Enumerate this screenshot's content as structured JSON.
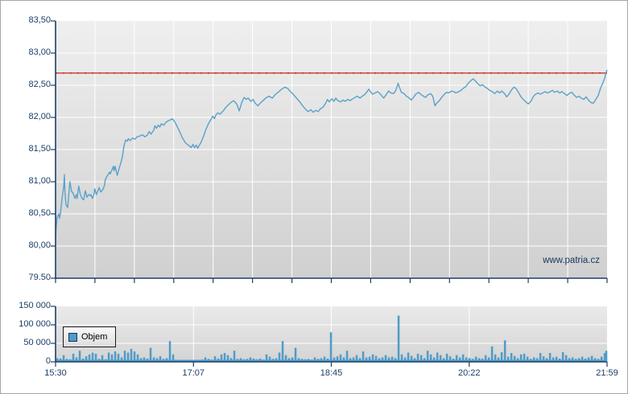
{
  "watermark": "www.patria.cz",
  "colors": {
    "price_line": "#5aa1c9",
    "volume_bar": "#4f9cc8",
    "reference_line": "#d94f43",
    "reference_line_dash": "#a93a30",
    "axis": "#1c3f66",
    "label_text": "#1c3f66",
    "gridline": "#ffffff",
    "plot_bg_top": "#efefef",
    "plot_bg_bottom": "#d0d0d0"
  },
  "price_chart": {
    "y_tick_labels": [
      "83,50",
      "83,00",
      "82,50",
      "82,00",
      "81,50",
      "81,00",
      "80,50",
      "80,00",
      "79.50"
    ],
    "y_min": 79.5,
    "y_max": 83.5,
    "reference_value": 82.69,
    "x_minor_divisions": 14
  },
  "volume_chart": {
    "legend_label": "Objem",
    "y_tick_labels": [
      "150 000",
      "100 000",
      "50 000",
      "0"
    ],
    "y_min": 0,
    "y_max": 150000,
    "x_tick_labels": [
      "15:30",
      "17:07",
      "18:45",
      "20:22",
      "21:59"
    ]
  },
  "chart_data": [
    {
      "type": "line",
      "name": "price",
      "x_axis": {
        "start": "15:30",
        "end": "21:59",
        "x_is_fraction_of_width": true
      },
      "ylim": [
        79.5,
        83.5
      ],
      "reference_line": 82.69,
      "points": [
        [
          0.0,
          80.1
        ],
        [
          0.001,
          80.28
        ],
        [
          0.003,
          80.45
        ],
        [
          0.006,
          80.5
        ],
        [
          0.007,
          80.43
        ],
        [
          0.009,
          80.52
        ],
        [
          0.01,
          80.6
        ],
        [
          0.012,
          80.74
        ],
        [
          0.015,
          80.95
        ],
        [
          0.016,
          81.11
        ],
        [
          0.017,
          80.85
        ],
        [
          0.019,
          80.64
        ],
        [
          0.022,
          80.6
        ],
        [
          0.025,
          80.9
        ],
        [
          0.026,
          81.0
        ],
        [
          0.029,
          80.85
        ],
        [
          0.032,
          80.82
        ],
        [
          0.035,
          80.74
        ],
        [
          0.038,
          80.8
        ],
        [
          0.039,
          80.74
        ],
        [
          0.042,
          80.93
        ],
        [
          0.045,
          80.8
        ],
        [
          0.048,
          80.74
        ],
        [
          0.051,
          80.72
        ],
        [
          0.054,
          80.86
        ],
        [
          0.057,
          80.76
        ],
        [
          0.06,
          80.8
        ],
        [
          0.063,
          80.78
        ],
        [
          0.064,
          80.8
        ],
        [
          0.067,
          80.74
        ],
        [
          0.07,
          80.82
        ],
        [
          0.071,
          80.89
        ],
        [
          0.074,
          80.8
        ],
        [
          0.077,
          80.86
        ],
        [
          0.079,
          80.91
        ],
        [
          0.082,
          80.84
        ],
        [
          0.084,
          80.86
        ],
        [
          0.086,
          80.88
        ],
        [
          0.089,
          80.95
        ],
        [
          0.09,
          81.03
        ],
        [
          0.093,
          81.08
        ],
        [
          0.095,
          81.11
        ],
        [
          0.098,
          81.15
        ],
        [
          0.099,
          81.12
        ],
        [
          0.102,
          81.18
        ],
        [
          0.105,
          81.24
        ],
        [
          0.106,
          81.17
        ],
        [
          0.108,
          81.24
        ],
        [
          0.111,
          81.13
        ],
        [
          0.112,
          81.1
        ],
        [
          0.115,
          81.2
        ],
        [
          0.118,
          81.28
        ],
        [
          0.121,
          81.38
        ],
        [
          0.124,
          81.55
        ],
        [
          0.127,
          81.65
        ],
        [
          0.13,
          81.63
        ],
        [
          0.132,
          81.67
        ],
        [
          0.135,
          81.64
        ],
        [
          0.14,
          81.68
        ],
        [
          0.144,
          81.66
        ],
        [
          0.148,
          81.7
        ],
        [
          0.153,
          81.71
        ],
        [
          0.157,
          81.73
        ],
        [
          0.162,
          81.7
        ],
        [
          0.166,
          81.72
        ],
        [
          0.17,
          81.78
        ],
        [
          0.173,
          81.74
        ],
        [
          0.178,
          81.8
        ],
        [
          0.18,
          81.87
        ],
        [
          0.183,
          81.83
        ],
        [
          0.186,
          81.88
        ],
        [
          0.189,
          81.85
        ],
        [
          0.192,
          81.9
        ],
        [
          0.196,
          81.88
        ],
        [
          0.201,
          81.93
        ],
        [
          0.205,
          81.95
        ],
        [
          0.21,
          81.97
        ],
        [
          0.212,
          81.98
        ],
        [
          0.217,
          81.92
        ],
        [
          0.221,
          81.85
        ],
        [
          0.226,
          81.76
        ],
        [
          0.23,
          81.68
        ],
        [
          0.236,
          81.6
        ],
        [
          0.242,
          81.56
        ],
        [
          0.246,
          81.53
        ],
        [
          0.249,
          81.58
        ],
        [
          0.252,
          81.53
        ],
        [
          0.255,
          81.57
        ],
        [
          0.258,
          81.52
        ],
        [
          0.26,
          81.56
        ],
        [
          0.263,
          81.6
        ],
        [
          0.268,
          81.7
        ],
        [
          0.272,
          81.8
        ],
        [
          0.276,
          81.88
        ],
        [
          0.279,
          81.93
        ],
        [
          0.282,
          81.97
        ],
        [
          0.285,
          82.02
        ],
        [
          0.288,
          81.98
        ],
        [
          0.291,
          82.04
        ],
        [
          0.294,
          82.07
        ],
        [
          0.298,
          82.05
        ],
        [
          0.304,
          82.1
        ],
        [
          0.309,
          82.16
        ],
        [
          0.314,
          82.2
        ],
        [
          0.319,
          82.24
        ],
        [
          0.323,
          82.26
        ],
        [
          0.329,
          82.2
        ],
        [
          0.333,
          82.1
        ],
        [
          0.338,
          82.24
        ],
        [
          0.342,
          82.31
        ],
        [
          0.346,
          82.28
        ],
        [
          0.349,
          82.3
        ],
        [
          0.354,
          82.25
        ],
        [
          0.358,
          82.28
        ],
        [
          0.362,
          82.22
        ],
        [
          0.367,
          82.18
        ],
        [
          0.371,
          82.22
        ],
        [
          0.376,
          82.26
        ],
        [
          0.381,
          82.3
        ],
        [
          0.387,
          82.33
        ],
        [
          0.393,
          82.3
        ],
        [
          0.399,
          82.36
        ],
        [
          0.405,
          82.4
        ],
        [
          0.41,
          82.44
        ],
        [
          0.416,
          82.47
        ],
        [
          0.421,
          82.45
        ],
        [
          0.425,
          82.41
        ],
        [
          0.431,
          82.36
        ],
        [
          0.437,
          82.3
        ],
        [
          0.442,
          82.25
        ],
        [
          0.448,
          82.18
        ],
        [
          0.454,
          82.12
        ],
        [
          0.458,
          82.09
        ],
        [
          0.463,
          82.12
        ],
        [
          0.467,
          82.08
        ],
        [
          0.472,
          82.11
        ],
        [
          0.476,
          82.09
        ],
        [
          0.48,
          82.13
        ],
        [
          0.485,
          82.16
        ],
        [
          0.489,
          82.21
        ],
        [
          0.493,
          82.28
        ],
        [
          0.496,
          82.24
        ],
        [
          0.501,
          82.29
        ],
        [
          0.505,
          82.25
        ],
        [
          0.508,
          82.3
        ],
        [
          0.512,
          82.26
        ],
        [
          0.517,
          82.24
        ],
        [
          0.521,
          82.27
        ],
        [
          0.525,
          82.25
        ],
        [
          0.53,
          82.28
        ],
        [
          0.534,
          82.26
        ],
        [
          0.539,
          82.29
        ],
        [
          0.543,
          82.31
        ],
        [
          0.547,
          82.33
        ],
        [
          0.552,
          82.3
        ],
        [
          0.556,
          82.33
        ],
        [
          0.56,
          82.35
        ],
        [
          0.565,
          82.4
        ],
        [
          0.568,
          82.44
        ],
        [
          0.571,
          82.4
        ],
        [
          0.575,
          82.36
        ],
        [
          0.579,
          82.38
        ],
        [
          0.584,
          82.4
        ],
        [
          0.588,
          82.37
        ],
        [
          0.592,
          82.33
        ],
        [
          0.595,
          82.3
        ],
        [
          0.6,
          82.36
        ],
        [
          0.604,
          82.41
        ],
        [
          0.608,
          82.38
        ],
        [
          0.613,
          82.37
        ],
        [
          0.617,
          82.42
        ],
        [
          0.621,
          82.53
        ],
        [
          0.624,
          82.46
        ],
        [
          0.627,
          82.39
        ],
        [
          0.632,
          82.37
        ],
        [
          0.636,
          82.33
        ],
        [
          0.64,
          82.31
        ],
        [
          0.645,
          82.27
        ],
        [
          0.649,
          82.31
        ],
        [
          0.653,
          82.36
        ],
        [
          0.658,
          82.39
        ],
        [
          0.662,
          82.36
        ],
        [
          0.667,
          82.33
        ],
        [
          0.671,
          82.31
        ],
        [
          0.675,
          82.35
        ],
        [
          0.68,
          82.37
        ],
        [
          0.684,
          82.33
        ],
        [
          0.688,
          82.18
        ],
        [
          0.691,
          82.22
        ],
        [
          0.696,
          82.26
        ],
        [
          0.7,
          82.31
        ],
        [
          0.704,
          82.35
        ],
        [
          0.709,
          82.39
        ],
        [
          0.713,
          82.38
        ],
        [
          0.718,
          82.41
        ],
        [
          0.722,
          82.4
        ],
        [
          0.726,
          82.38
        ],
        [
          0.731,
          82.4
        ],
        [
          0.735,
          82.42
        ],
        [
          0.739,
          82.45
        ],
        [
          0.744,
          82.48
        ],
        [
          0.748,
          82.53
        ],
        [
          0.753,
          82.57
        ],
        [
          0.757,
          82.6
        ],
        [
          0.761,
          82.57
        ],
        [
          0.766,
          82.52
        ],
        [
          0.77,
          82.49
        ],
        [
          0.774,
          82.51
        ],
        [
          0.779,
          82.47
        ],
        [
          0.783,
          82.45
        ],
        [
          0.787,
          82.42
        ],
        [
          0.792,
          82.4
        ],
        [
          0.796,
          82.37
        ],
        [
          0.801,
          82.41
        ],
        [
          0.805,
          82.38
        ],
        [
          0.809,
          82.41
        ],
        [
          0.814,
          82.37
        ],
        [
          0.818,
          82.32
        ],
        [
          0.822,
          82.36
        ],
        [
          0.827,
          82.43
        ],
        [
          0.831,
          82.47
        ],
        [
          0.835,
          82.45
        ],
        [
          0.84,
          82.38
        ],
        [
          0.844,
          82.32
        ],
        [
          0.849,
          82.27
        ],
        [
          0.853,
          82.24
        ],
        [
          0.857,
          82.21
        ],
        [
          0.862,
          82.25
        ],
        [
          0.866,
          82.32
        ],
        [
          0.87,
          82.36
        ],
        [
          0.875,
          82.38
        ],
        [
          0.879,
          82.36
        ],
        [
          0.883,
          82.38
        ],
        [
          0.888,
          82.4
        ],
        [
          0.892,
          82.38
        ],
        [
          0.897,
          82.4
        ],
        [
          0.901,
          82.42
        ],
        [
          0.905,
          82.39
        ],
        [
          0.91,
          82.41
        ],
        [
          0.914,
          82.38
        ],
        [
          0.918,
          82.4
        ],
        [
          0.923,
          82.37
        ],
        [
          0.927,
          82.34
        ],
        [
          0.931,
          82.37
        ],
        [
          0.936,
          82.39
        ],
        [
          0.94,
          82.35
        ],
        [
          0.945,
          82.31
        ],
        [
          0.949,
          82.33
        ],
        [
          0.953,
          82.3
        ],
        [
          0.958,
          82.28
        ],
        [
          0.962,
          82.32
        ],
        [
          0.966,
          82.27
        ],
        [
          0.971,
          82.23
        ],
        [
          0.975,
          82.22
        ],
        [
          0.979,
          82.27
        ],
        [
          0.984,
          82.34
        ],
        [
          0.988,
          82.45
        ],
        [
          0.993,
          82.55
        ],
        [
          0.996,
          82.62
        ],
        [
          0.998,
          82.7
        ],
        [
          1.0,
          82.73
        ]
      ]
    },
    {
      "type": "bar",
      "name": "Objem",
      "ylim": [
        0,
        150000
      ],
      "value_unit": "thousands_of_shares",
      "start_fraction": 0.003,
      "step_fraction": 0.00584,
      "values": [
        10,
        9,
        18,
        8,
        7,
        22,
        12,
        30,
        9,
        15,
        20,
        25,
        22,
        8,
        18,
        7,
        25,
        20,
        28,
        22,
        12,
        30,
        25,
        35,
        28,
        20,
        10,
        12,
        9,
        38,
        12,
        10,
        15,
        8,
        10,
        56,
        20,
        5,
        4,
        3,
        4,
        5,
        3,
        4,
        5,
        6,
        12,
        8,
        6,
        15,
        9,
        20,
        24,
        18,
        10,
        30,
        8,
        10,
        7,
        8,
        12,
        9,
        7,
        9,
        6,
        20,
        14,
        8,
        10,
        25,
        56,
        18,
        10,
        12,
        38,
        10,
        8,
        7,
        8,
        6,
        12,
        8,
        10,
        14,
        9,
        80,
        12,
        15,
        20,
        12,
        30,
        10,
        12,
        18,
        10,
        28,
        12,
        14,
        20,
        16,
        10,
        12,
        18,
        12,
        14,
        10,
        125,
        20,
        12,
        25,
        16,
        10,
        22,
        18,
        10,
        30,
        20,
        12,
        25,
        18,
        10,
        22,
        15,
        9,
        18,
        12,
        20,
        12,
        10,
        8,
        14,
        10,
        9,
        18,
        12,
        42,
        20,
        12,
        26,
        58,
        14,
        24,
        16,
        10,
        20,
        22,
        14,
        8,
        12,
        10,
        24,
        15,
        10,
        24,
        12,
        14,
        9,
        26,
        18,
        10,
        12,
        8,
        10,
        14,
        9,
        12,
        16,
        10,
        8,
        14,
        24,
        30
      ]
    }
  ]
}
